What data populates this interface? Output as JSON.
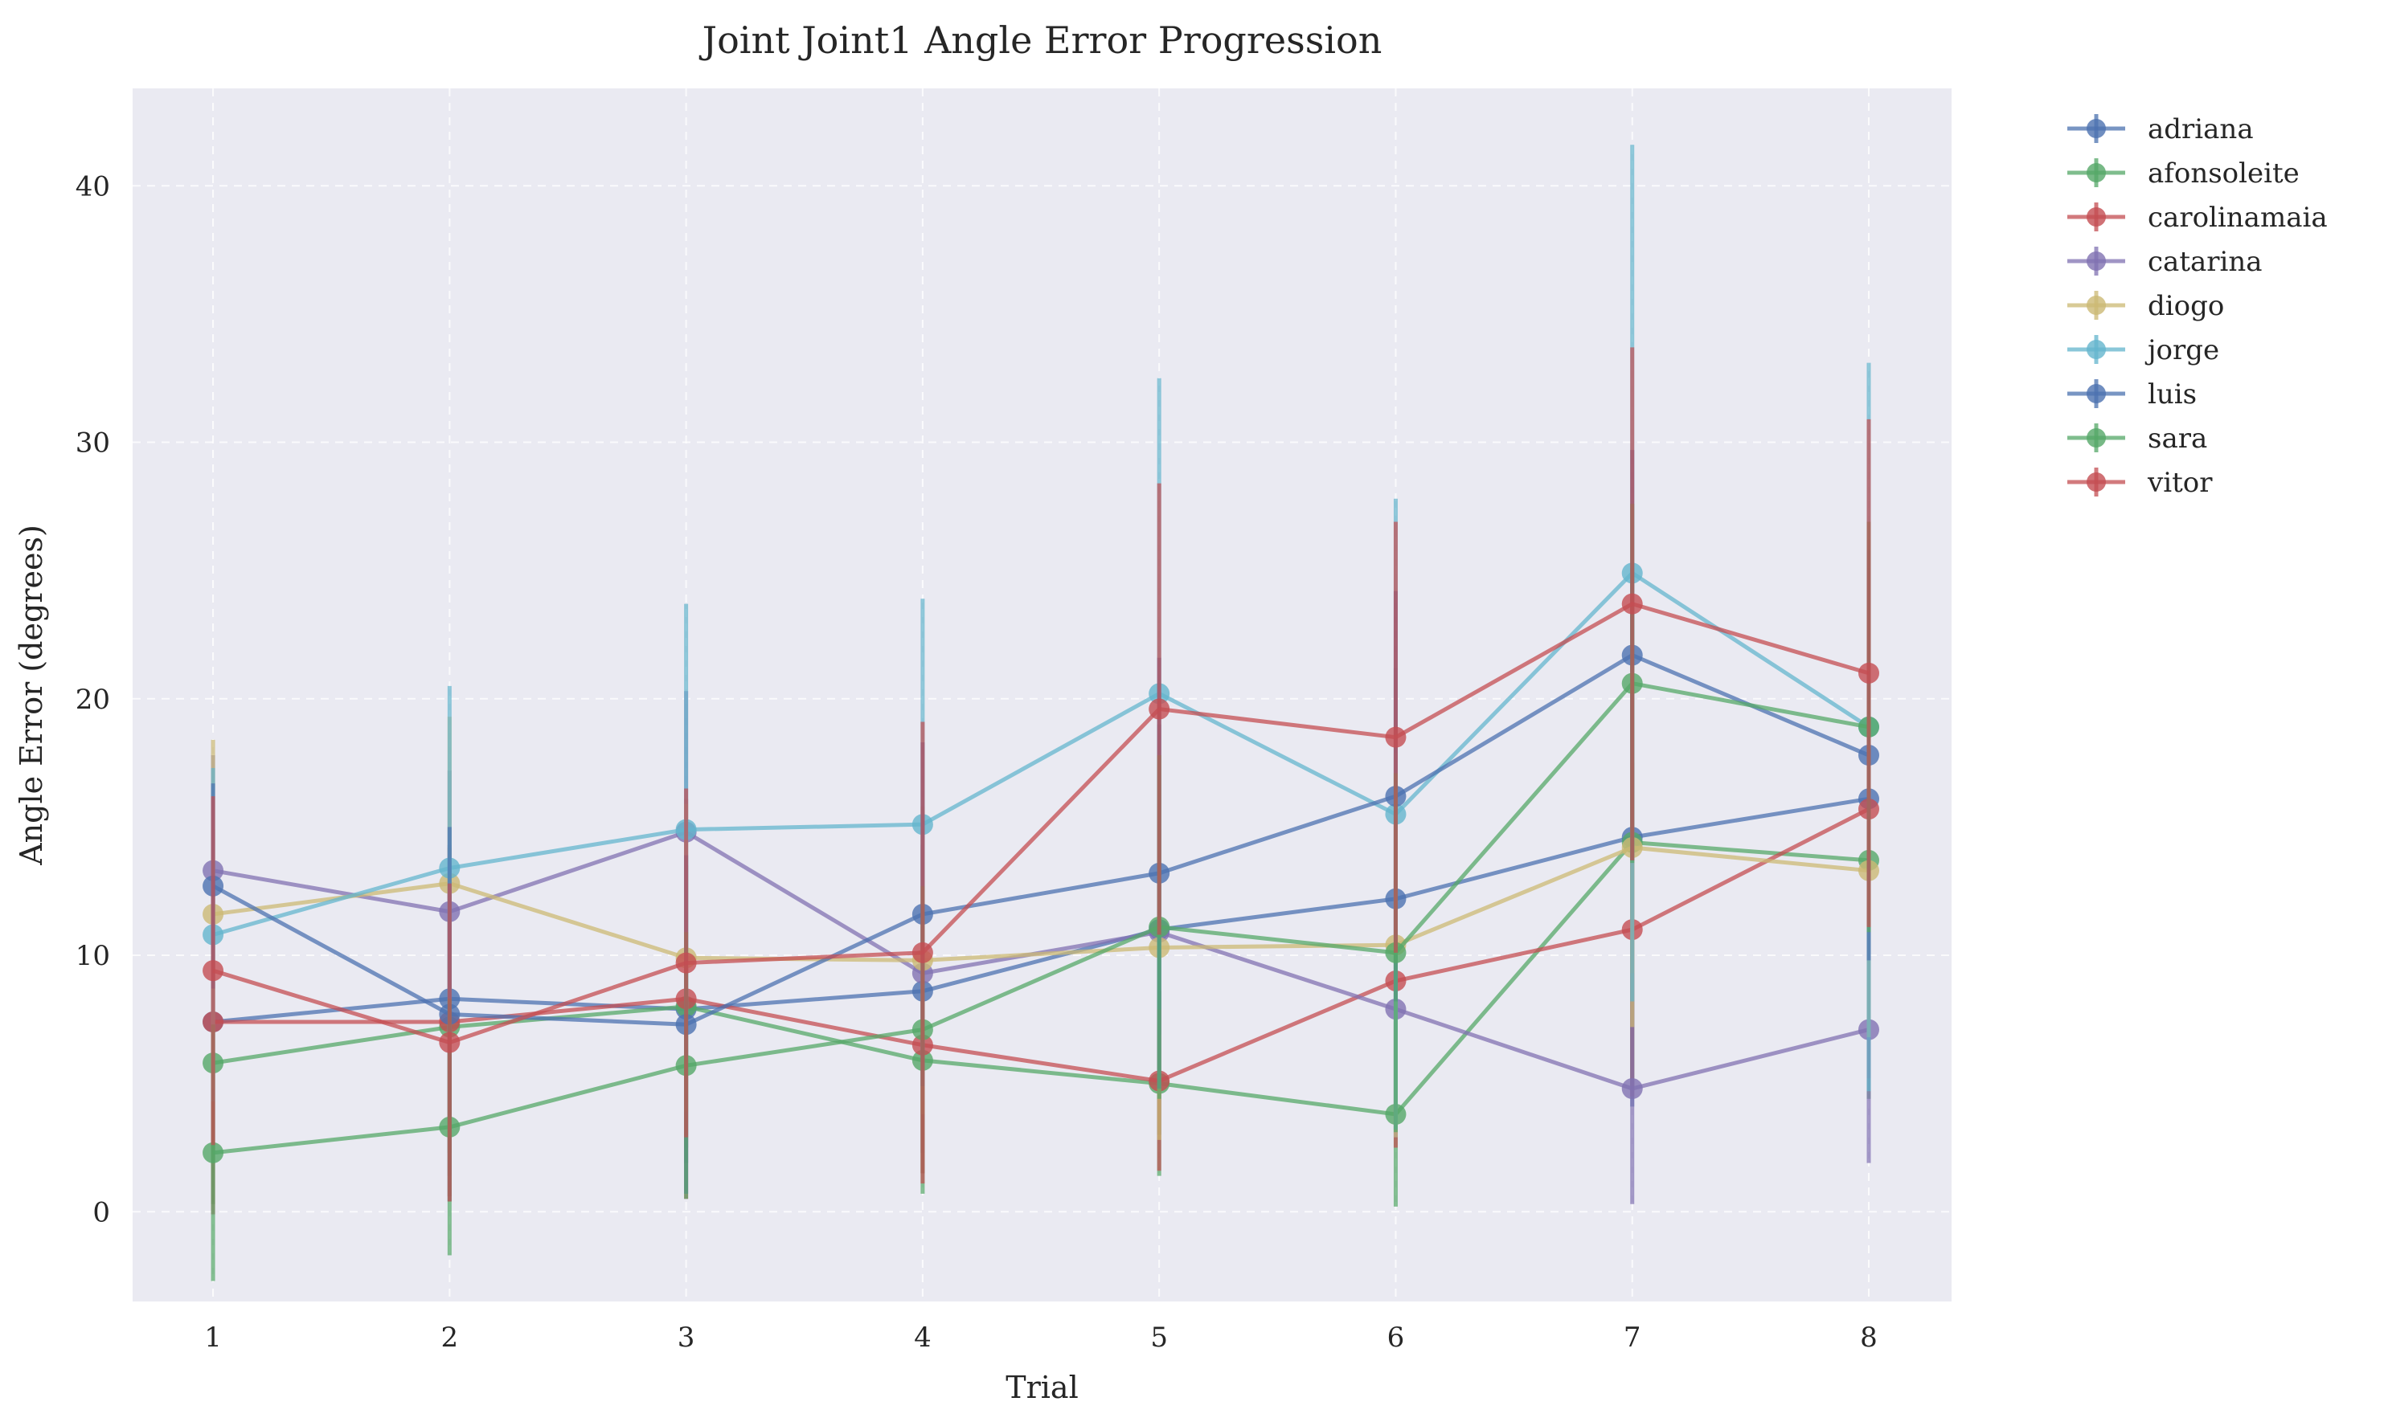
{
  "chart_data": {
    "type": "line",
    "title": "Joint Joint1 Angle Error Progression",
    "xlabel": "Trial",
    "ylabel": "Angle Error (degrees)",
    "x": [
      1,
      2,
      3,
      4,
      5,
      6,
      7,
      8
    ],
    "x_tick_labels": [
      "1",
      "2",
      "3",
      "4",
      "5",
      "6",
      "7",
      "8"
    ],
    "xlim": [
      0.66,
      8.35
    ],
    "y_ticks": [
      0,
      10,
      20,
      30,
      40
    ],
    "ylim": [
      -3.5,
      43.8
    ],
    "grid": true,
    "error_bars": true,
    "legend_placement": "outside right, top",
    "colors": {
      "plot_background": "#eaeaf2",
      "grid": "#ffffff",
      "text": "#262626"
    },
    "series": [
      {
        "name": "adriana",
        "color": "#4c72b0",
        "values": [
          7.4,
          8.3,
          7.9,
          8.6,
          11.0,
          12.2,
          14.6,
          16.1
        ],
        "errors": [
          5.5,
          6.0,
          6.0,
          6.3,
          8.0,
          9.0,
          10.5,
          9.0
        ]
      },
      {
        "name": "afonsoleite",
        "color": "#55a868",
        "values": [
          5.8,
          7.2,
          8.0,
          5.9,
          5.0,
          3.8,
          14.4,
          13.7
        ],
        "errors": [
          5.5,
          5.8,
          5.5,
          5.2,
          3.6,
          3.6,
          9.6,
          9.3
        ]
      },
      {
        "name": "carolinamaia",
        "color": "#c44e52",
        "values": [
          7.4,
          7.4,
          8.3,
          6.5,
          5.1,
          9.0,
          11.0,
          15.7
        ],
        "errors": [
          7.5,
          6.8,
          7.8,
          5.0,
          3.5,
          6.5,
          6.5,
          10.5
        ]
      },
      {
        "name": "catarina",
        "color": "#8172b2",
        "values": [
          13.3,
          11.7,
          14.8,
          9.3,
          10.9,
          7.9,
          4.8,
          7.1
        ],
        "errors": [
          4.5,
          5.5,
          5.5,
          5.0,
          4.0,
          5.0,
          4.5,
          5.2
        ]
      },
      {
        "name": "diogo",
        "color": "#ccb974",
        "values": [
          11.6,
          12.8,
          9.9,
          9.8,
          10.3,
          10.4,
          14.2,
          13.3
        ],
        "errors": [
          6.8,
          6.5,
          6.0,
          6.0,
          7.5,
          7.5,
          7.0,
          6.5
        ]
      },
      {
        "name": "jorge",
        "color": "#64b5cd",
        "values": [
          10.8,
          13.4,
          14.9,
          15.1,
          20.2,
          15.5,
          24.9,
          18.9
        ],
        "errors": [
          6.5,
          7.1,
          8.8,
          8.8,
          12.3,
          12.3,
          16.7,
          14.2
        ]
      },
      {
        "name": "luis",
        "color": "#4c72b0",
        "values": [
          12.7,
          7.7,
          7.3,
          11.6,
          13.2,
          16.2,
          21.7,
          17.8
        ],
        "errors": [
          4.0,
          7.3,
          6.6,
          6.7,
          8.4,
          8.0,
          8.0,
          8.0
        ]
      },
      {
        "name": "sara",
        "color": "#55a868",
        "values": [
          2.3,
          3.3,
          5.7,
          7.1,
          11.1,
          10.1,
          20.6,
          18.9
        ],
        "errors": [
          5.0,
          5.0,
          5.2,
          5.6,
          6.7,
          7.0,
          7.0,
          8.0
        ]
      },
      {
        "name": "vitor",
        "color": "#c44e52",
        "values": [
          9.4,
          6.6,
          9.7,
          10.1,
          19.6,
          18.5,
          23.7,
          21.0
        ],
        "errors": [
          6.8,
          6.2,
          6.8,
          9.0,
          8.8,
          8.4,
          10.0,
          9.9
        ]
      }
    ]
  }
}
